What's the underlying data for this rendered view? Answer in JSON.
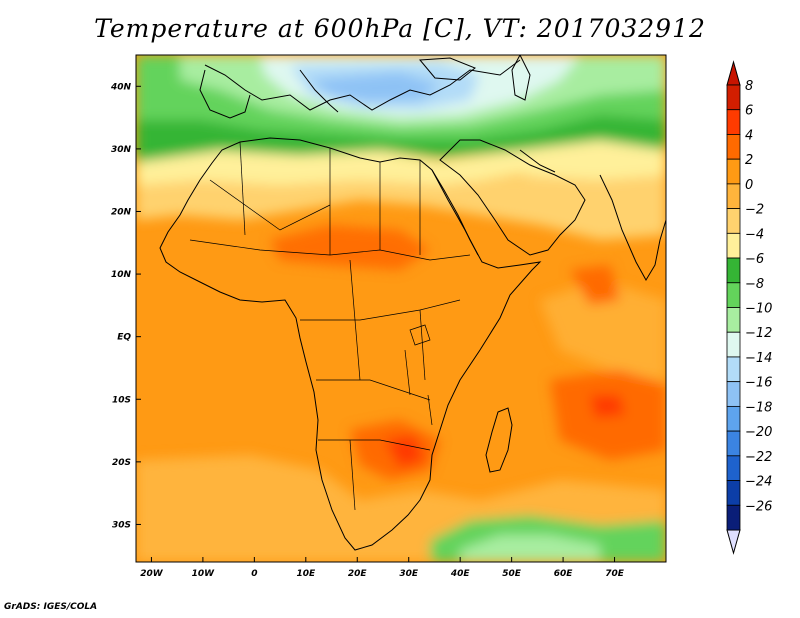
{
  "title": "Temperature at 600hPa [C], VT: 2017032912",
  "credit": "GrADS: IGES/COLA",
  "map": {
    "projection": "latlon",
    "lon_range": [
      -23,
      80
    ],
    "lat_range": [
      -36,
      45
    ],
    "lon_ticks": [
      {
        "value": -20,
        "label": "20W"
      },
      {
        "value": -10,
        "label": "10W"
      },
      {
        "value": 0,
        "label": "0"
      },
      {
        "value": 10,
        "label": "10E"
      },
      {
        "value": 20,
        "label": "20E"
      },
      {
        "value": 30,
        "label": "30E"
      },
      {
        "value": 40,
        "label": "40E"
      },
      {
        "value": 50,
        "label": "50E"
      },
      {
        "value": 60,
        "label": "60E"
      },
      {
        "value": 70,
        "label": "70E"
      }
    ],
    "lat_ticks": [
      {
        "value": 40,
        "label": "40N"
      },
      {
        "value": 30,
        "label": "30N"
      },
      {
        "value": 20,
        "label": "20N"
      },
      {
        "value": 10,
        "label": "10N"
      },
      {
        "value": 0,
        "label": "EQ"
      },
      {
        "value": -10,
        "label": "10S"
      },
      {
        "value": -20,
        "label": "20S"
      },
      {
        "value": -30,
        "label": "30S"
      }
    ]
  },
  "colorbar": {
    "levels": [
      {
        "label": "8",
        "color": "#d21e00"
      },
      {
        "label": "6",
        "color": "#ff3b00"
      },
      {
        "label": "4",
        "color": "#ff6a00"
      },
      {
        "label": "2",
        "color": "#ff9a14"
      },
      {
        "label": "0",
        "color": "#ffb43c"
      },
      {
        "label": "-2",
        "color": "#ffd26e"
      },
      {
        "label": "-4",
        "color": "#fff09a"
      },
      {
        "label": "-6",
        "color": "#35b535"
      },
      {
        "label": "-8",
        "color": "#63d35b"
      },
      {
        "label": "-10",
        "color": "#a8eda0"
      },
      {
        "label": "-12",
        "color": "#dff8f0"
      },
      {
        "label": "-14",
        "color": "#b2dcf8"
      },
      {
        "label": "-16",
        "color": "#8ec2f5"
      },
      {
        "label": "-18",
        "color": "#5ea4ee"
      },
      {
        "label": "-20",
        "color": "#3b84e2"
      },
      {
        "label": "-22",
        "color": "#1e62cd"
      },
      {
        "label": "-24",
        "color": "#0c3ea8"
      },
      {
        "label": "-26",
        "color": "#0a1e78"
      }
    ],
    "top_cap_color": "#c81400",
    "bottom_cap_color": "#e0e0ff"
  },
  "colors": {
    "frame": "#000000",
    "background": "#ffffff"
  }
}
